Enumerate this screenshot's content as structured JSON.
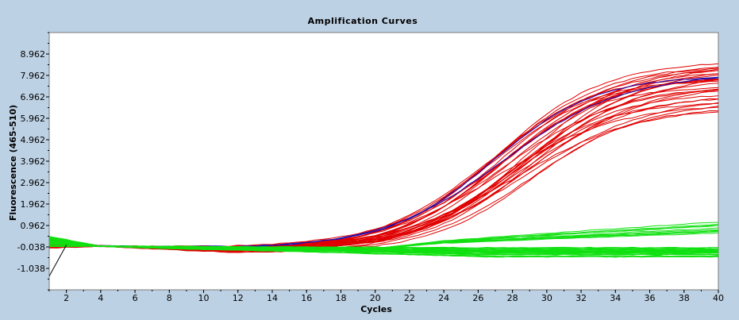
{
  "chart_data": {
    "type": "line",
    "title": "Amplification Curves",
    "xlabel": "Cycles",
    "ylabel": "Fluorescence (465-510)",
    "xlim": [
      1,
      40
    ],
    "ylim": [
      -2.038,
      9.962
    ],
    "x_ticks": [
      2,
      4,
      6,
      8,
      10,
      12,
      14,
      16,
      18,
      20,
      22,
      24,
      26,
      28,
      30,
      32,
      34,
      36,
      38,
      40
    ],
    "x_tick_labels": [
      "2",
      "4",
      "6",
      "8",
      "10",
      "12",
      "14",
      "16",
      "18",
      "20",
      "22",
      "24",
      "26",
      "28",
      "30",
      "32",
      "34",
      "36",
      "38",
      "40"
    ],
    "y_ticks": [
      -1.038,
      -0.038,
      0.962,
      1.962,
      2.962,
      3.962,
      4.962,
      5.962,
      6.962,
      7.962,
      8.962
    ],
    "y_tick_labels": [
      "-1.038",
      "-0.038",
      "0.962",
      "1.962",
      "2.962",
      "3.962",
      "4.962",
      "5.962",
      "6.962",
      "7.962",
      "8.962"
    ],
    "grid": false,
    "colors": {
      "amplified": "#e00000",
      "amplified_alt": "#1010c0",
      "negative": "#10e010",
      "artifact": "#000000",
      "plot_background": "#ffffff",
      "frame_background": "#bdd1e4"
    },
    "series_groups": [
      {
        "name": "amplified",
        "color": "#e00000",
        "count": 32,
        "baseline_range": [
          -0.35,
          -0.05
        ],
        "plateau_range": [
          6.4,
          8.8
        ],
        "midpoint_cycle_range": [
          26.6,
          29.2
        ]
      },
      {
        "name": "amplified_alt",
        "color": "#1010c0",
        "count": 2,
        "baseline_range": [
          -0.2,
          -0.05
        ],
        "plateau_range": [
          7.9,
          8.1
        ],
        "midpoint_cycle_range": [
          26.8,
          27.4
        ]
      },
      {
        "name": "negative_flat",
        "color": "#10e010",
        "count": 26,
        "start_range": [
          -0.05,
          0.45
        ],
        "end_range": [
          -0.5,
          0.0
        ]
      },
      {
        "name": "negative_rising",
        "color": "#10e010",
        "count": 10,
        "start_range": [
          -0.05,
          0.45
        ],
        "end_range": [
          0.6,
          1.25
        ]
      },
      {
        "name": "artifact",
        "color": "#000000",
        "count": 1,
        "x": [
          1,
          2
        ],
        "y": [
          -1.4,
          0.05
        ]
      }
    ]
  }
}
